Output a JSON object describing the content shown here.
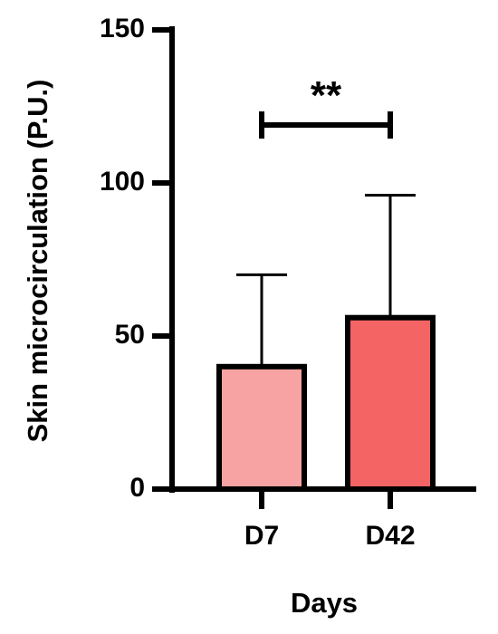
{
  "chart_data": {
    "type": "bar",
    "categories": [
      "D7",
      "D42"
    ],
    "values": [
      40,
      56
    ],
    "error_upper": [
      70,
      96
    ],
    "bar_colors": [
      "#f8a3a3",
      "#f46464"
    ],
    "xlabel": "Days",
    "ylabel": "Skin microcirculation (P.U.)",
    "ylim": [
      0,
      150
    ],
    "yticks": [
      0,
      50,
      100,
      150
    ],
    "ytick_labels": [
      "0",
      "50",
      "100",
      "150"
    ],
    "grid": false,
    "significance": {
      "between": [
        "D7",
        "D42"
      ],
      "label": "**"
    }
  }
}
